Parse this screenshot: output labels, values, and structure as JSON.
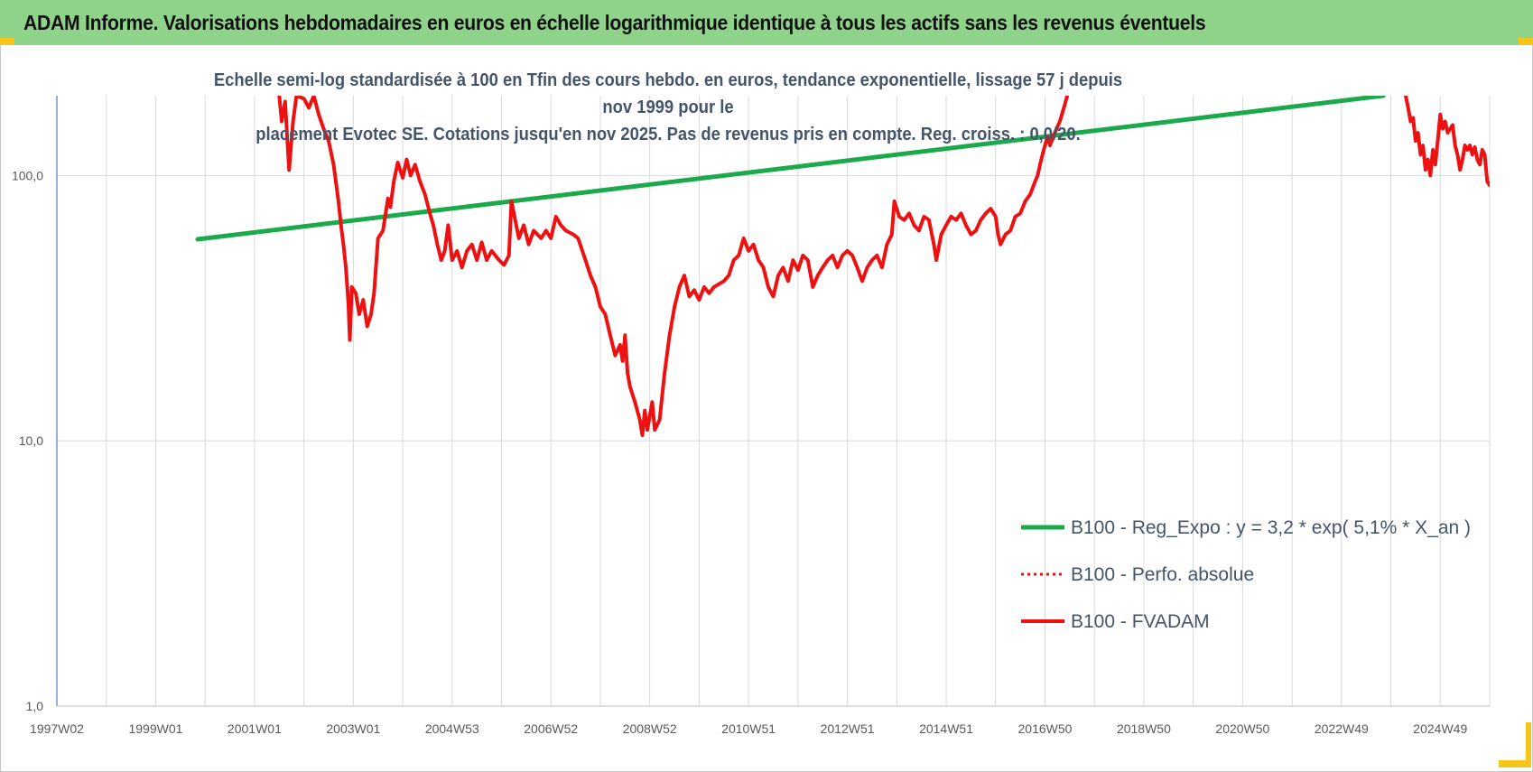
{
  "header": {
    "title": "ADAM Informe. Valorisations hebdomadaires en euros en échelle logarithmique identique à tous les actifs sans les revenus éventuels"
  },
  "colors": {
    "banner": "#8fd28a",
    "trend": "#1aaa4b",
    "price": "#ee1111",
    "gridline": "#d9d9d9",
    "axis": "#4f81bd"
  },
  "chart_data": {
    "type": "line",
    "subtitle_line1": "Echelle semi-log standardisée à 100 en Tfin des cours hebdo. en euros, tendance exponentielle, lissage 57 j depuis nov 1999 pour le",
    "subtitle_line2": "placement Evotec SE. Cotations jusqu'en nov 2025. Pas de revenus pris en compte. Reg. croiss. : 0,0/20.",
    "y_scale": "log",
    "ylim": [
      1,
      200
    ],
    "xlim": [
      1997.0,
      2026.0
    ],
    "y_ticks": [
      {
        "value": 1,
        "label": "1,0"
      },
      {
        "value": 10,
        "label": "10,0"
      },
      {
        "value": 100,
        "label": "100,0"
      }
    ],
    "x_ticks": [
      {
        "x": 1997.0,
        "label": "1997W02"
      },
      {
        "x": 1999.0,
        "label": "1999W01"
      },
      {
        "x": 2001.0,
        "label": "2001W01"
      },
      {
        "x": 2003.0,
        "label": "2003W01"
      },
      {
        "x": 2005.0,
        "label": "2004W53"
      },
      {
        "x": 2007.0,
        "label": "2006W52"
      },
      {
        "x": 2009.0,
        "label": "2008W52"
      },
      {
        "x": 2011.0,
        "label": "2010W51"
      },
      {
        "x": 2013.0,
        "label": "2012W51"
      },
      {
        "x": 2015.0,
        "label": "2014W51"
      },
      {
        "x": 2017.0,
        "label": "2016W50"
      },
      {
        "x": 2019.0,
        "label": "2018W50"
      },
      {
        "x": 2021.0,
        "label": "2020W50"
      },
      {
        "x": 2023.0,
        "label": "2022W49"
      },
      {
        "x": 2025.0,
        "label": "2024W49"
      }
    ],
    "grid": "vertical and horizontal",
    "legend_position": "bottom-right",
    "series": [
      {
        "name": "B100 - Reg_Expo : y = 3,2 * exp( 5,1% *  X_an )",
        "style": "solid-green",
        "points": [
          [
            1999.85,
            57.5
          ],
          [
            2023.85,
            200
          ]
        ]
      },
      {
        "name": "B100 - Perfo. absolue",
        "style": "dotted-red",
        "points": []
      },
      {
        "name": "B100 - FVADAM",
        "style": "solid-red",
        "segments": [
          [
            [
              2001.5,
              200
            ],
            [
              2001.55,
              160
            ],
            [
              2001.62,
              190
            ],
            [
              2001.7,
              105
            ],
            [
              2001.78,
              160
            ],
            [
              2001.85,
              200
            ],
            [
              2002.0,
              195
            ],
            [
              2002.1,
              180
            ],
            [
              2002.2,
              200
            ],
            [
              2002.3,
              170
            ],
            [
              2002.4,
              150
            ],
            [
              2002.5,
              135
            ],
            [
              2002.6,
              110
            ],
            [
              2002.7,
              80
            ],
            [
              2002.75,
              65
            ],
            [
              2002.8,
              55
            ],
            [
              2002.85,
              45
            ],
            [
              2002.9,
              33
            ],
            [
              2002.93,
              24
            ],
            [
              2002.97,
              38
            ],
            [
              2003.05,
              36
            ],
            [
              2003.12,
              30
            ],
            [
              2003.2,
              34
            ],
            [
              2003.28,
              27
            ],
            [
              2003.36,
              30
            ],
            [
              2003.42,
              36
            ],
            [
              2003.5,
              58
            ],
            [
              2003.6,
              62
            ],
            [
              2003.7,
              82
            ],
            [
              2003.75,
              76
            ],
            [
              2003.82,
              95
            ],
            [
              2003.9,
              112
            ],
            [
              2004.0,
              98
            ],
            [
              2004.08,
              115
            ],
            [
              2004.16,
              100
            ],
            [
              2004.25,
              110
            ],
            [
              2004.35,
              95
            ],
            [
              2004.45,
              85
            ],
            [
              2004.55,
              72
            ],
            [
              2004.62,
              65
            ],
            [
              2004.7,
              55
            ],
            [
              2004.78,
              48
            ],
            [
              2004.85,
              52
            ],
            [
              2004.92,
              65
            ],
            [
              2005.0,
              48
            ],
            [
              2005.1,
              52
            ],
            [
              2005.2,
              45
            ],
            [
              2005.3,
              52
            ],
            [
              2005.4,
              55
            ],
            [
              2005.5,
              48
            ],
            [
              2005.6,
              56
            ],
            [
              2005.7,
              48
            ],
            [
              2005.8,
              52
            ],
            [
              2005.95,
              48
            ],
            [
              2006.05,
              46
            ],
            [
              2006.15,
              50
            ],
            [
              2006.2,
              80
            ],
            [
              2006.25,
              72
            ],
            [
              2006.35,
              58
            ],
            [
              2006.45,
              65
            ],
            [
              2006.55,
              55
            ],
            [
              2006.65,
              62
            ],
            [
              2006.8,
              58
            ],
            [
              2006.9,
              62
            ],
            [
              2007.0,
              58
            ],
            [
              2007.1,
              70
            ],
            [
              2007.2,
              65
            ],
            [
              2007.3,
              62
            ],
            [
              2007.45,
              60
            ],
            [
              2007.55,
              58
            ],
            [
              2007.7,
              48
            ],
            [
              2007.8,
              42
            ],
            [
              2007.9,
              38
            ],
            [
              2008.0,
              32
            ],
            [
              2008.1,
              30
            ],
            [
              2008.2,
              25
            ],
            [
              2008.3,
              21
            ],
            [
              2008.4,
              23
            ],
            [
              2008.45,
              20
            ],
            [
              2008.5,
              25
            ],
            [
              2008.55,
              18
            ],
            [
              2008.6,
              16
            ],
            [
              2008.7,
              14
            ],
            [
              2008.8,
              12
            ],
            [
              2008.85,
              10.5
            ],
            [
              2008.9,
              13
            ],
            [
              2008.95,
              11
            ],
            [
              2009.05,
              14
            ],
            [
              2009.1,
              11
            ],
            [
              2009.2,
              12
            ],
            [
              2009.3,
              18
            ],
            [
              2009.4,
              25
            ],
            [
              2009.5,
              32
            ],
            [
              2009.6,
              38
            ],
            [
              2009.7,
              42
            ],
            [
              2009.8,
              35
            ],
            [
              2009.9,
              37
            ],
            [
              2010.0,
              34
            ],
            [
              2010.1,
              38
            ],
            [
              2010.2,
              36
            ],
            [
              2010.3,
              38
            ],
            [
              2010.5,
              40
            ],
            [
              2010.6,
              42
            ],
            [
              2010.7,
              48
            ],
            [
              2010.8,
              50
            ],
            [
              2010.9,
              58
            ],
            [
              2011.0,
              52
            ],
            [
              2011.1,
              55
            ],
            [
              2011.2,
              48
            ],
            [
              2011.3,
              45
            ],
            [
              2011.4,
              38
            ],
            [
              2011.5,
              35
            ],
            [
              2011.6,
              42
            ],
            [
              2011.7,
              45
            ],
            [
              2011.8,
              40
            ],
            [
              2011.9,
              48
            ],
            [
              2012.0,
              44
            ],
            [
              2012.1,
              50
            ],
            [
              2012.2,
              48
            ],
            [
              2012.3,
              38
            ],
            [
              2012.4,
              42
            ],
            [
              2012.5,
              45
            ],
            [
              2012.6,
              48
            ],
            [
              2012.7,
              50
            ],
            [
              2012.8,
              45
            ],
            [
              2012.9,
              50
            ],
            [
              2013.0,
              52
            ],
            [
              2013.1,
              50
            ],
            [
              2013.2,
              45
            ],
            [
              2013.3,
              40
            ],
            [
              2013.4,
              45
            ],
            [
              2013.5,
              48
            ],
            [
              2013.6,
              50
            ],
            [
              2013.7,
              45
            ],
            [
              2013.8,
              55
            ],
            [
              2013.9,
              60
            ],
            [
              2013.95,
              80
            ],
            [
              2014.05,
              70
            ],
            [
              2014.15,
              68
            ],
            [
              2014.25,
              72
            ],
            [
              2014.35,
              65
            ],
            [
              2014.45,
              62
            ],
            [
              2014.55,
              70
            ],
            [
              2014.65,
              68
            ],
            [
              2014.75,
              55
            ],
            [
              2014.8,
              48
            ],
            [
              2014.9,
              60
            ],
            [
              2015.0,
              65
            ],
            [
              2015.1,
              70
            ],
            [
              2015.2,
              68
            ],
            [
              2015.3,
              72
            ],
            [
              2015.4,
              65
            ],
            [
              2015.5,
              60
            ],
            [
              2015.6,
              62
            ],
            [
              2015.7,
              68
            ],
            [
              2015.8,
              72
            ],
            [
              2015.9,
              75
            ],
            [
              2016.0,
              70
            ],
            [
              2016.05,
              60
            ],
            [
              2016.1,
              55
            ],
            [
              2016.2,
              60
            ],
            [
              2016.3,
              62
            ],
            [
              2016.4,
              70
            ],
            [
              2016.5,
              72
            ],
            [
              2016.6,
              80
            ],
            [
              2016.7,
              85
            ],
            [
              2016.8,
              95
            ],
            [
              2016.85,
              100
            ],
            [
              2016.9,
              110
            ],
            [
              2016.95,
              120
            ],
            [
              2017.0,
              130
            ],
            [
              2017.05,
              140
            ],
            [
              2017.1,
              130
            ],
            [
              2017.2,
              145
            ],
            [
              2017.3,
              160
            ],
            [
              2017.4,
              185
            ],
            [
              2017.45,
              200
            ]
          ],
          [
            [
              2024.3,
              200
            ],
            [
              2024.35,
              180
            ],
            [
              2024.4,
              160
            ],
            [
              2024.45,
              165
            ],
            [
              2024.5,
              135
            ],
            [
              2024.55,
              145
            ],
            [
              2024.6,
              120
            ],
            [
              2024.65,
              130
            ],
            [
              2024.7,
              105
            ],
            [
              2024.75,
              115
            ],
            [
              2024.8,
              100
            ],
            [
              2024.85,
              125
            ],
            [
              2024.9,
              110
            ],
            [
              2024.95,
              135
            ],
            [
              2025.0,
              170
            ],
            [
              2025.05,
              150
            ],
            [
              2025.1,
              160
            ],
            [
              2025.15,
              145
            ],
            [
              2025.2,
              150
            ],
            [
              2025.25,
              155
            ],
            [
              2025.3,
              130
            ],
            [
              2025.35,
              120
            ],
            [
              2025.4,
              105
            ],
            [
              2025.45,
              115
            ],
            [
              2025.5,
              130
            ],
            [
              2025.55,
              125
            ],
            [
              2025.6,
              130
            ],
            [
              2025.65,
              120
            ],
            [
              2025.7,
              128
            ],
            [
              2025.75,
              115
            ],
            [
              2025.8,
              110
            ],
            [
              2025.85,
              125
            ],
            [
              2025.9,
              120
            ],
            [
              2025.95,
              95
            ],
            [
              2026.0,
              92
            ]
          ]
        ]
      }
    ]
  }
}
